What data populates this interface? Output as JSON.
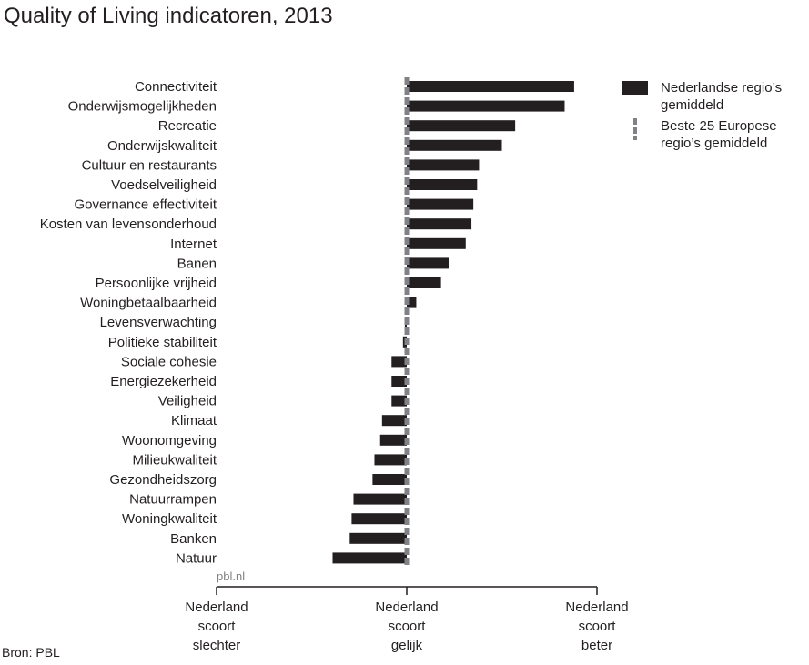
{
  "title": "Quality of Living indicatoren, 2013",
  "watermark": "pbl.nl",
  "source": "Bron: PBL",
  "legend": {
    "nl_label": "Nederlandse regio’s gemiddeld",
    "eu_label": "Beste 25 Europese regio’s gemiddeld"
  },
  "colors": {
    "bar": "#231f20",
    "reference": "#808285"
  },
  "chart_data": {
    "type": "bar",
    "orientation": "horizontal",
    "reference_value": 0,
    "xlim": [
      -100,
      100
    ],
    "x_tick_labels": [
      [
        "Nederland",
        "scoort",
        "slechter"
      ],
      [
        "Nederland",
        "scoort",
        "gelijk"
      ],
      [
        "Nederland",
        "scoort",
        "beter"
      ]
    ],
    "series": [
      {
        "name": "Nederlandse regio’s gemiddeld",
        "values": [
          88,
          83,
          57,
          50,
          38,
          37,
          35,
          34,
          31,
          22,
          18,
          5,
          -1,
          -2,
          -8,
          -8,
          -8,
          -13,
          -14,
          -17,
          -18,
          -28,
          -29,
          -30,
          -39
        ]
      },
      {
        "name": "Beste 25 Europese regio’s gemiddeld",
        "values": [
          0,
          0,
          0,
          0,
          0,
          0,
          0,
          0,
          0,
          0,
          0,
          0,
          0,
          0,
          0,
          0,
          0,
          0,
          0,
          0,
          0,
          0,
          0,
          0,
          0
        ]
      }
    ],
    "categories": [
      "Connectiviteit",
      "Onderwijsmogelijkheden",
      "Recreatie",
      "Onderwijskwaliteit",
      "Cultuur en restaurants",
      "Voedselveiligheid",
      "Governance effectiviteit",
      "Kosten van levensonderhoud",
      "Internet",
      "Banen",
      "Persoonlijke vrijheid",
      "Woningbetaalbaarheid",
      "Levensverwachting",
      "Politieke stabiliteit",
      "Sociale cohesie",
      "Energiezekerheid",
      "Veiligheid",
      "Klimaat",
      "Woonomgeving",
      "Milieukwaliteit",
      "Gezondheidszorg",
      "Natuurrampen",
      "Woningkwaliteit",
      "Banken",
      "Natuur"
    ]
  }
}
